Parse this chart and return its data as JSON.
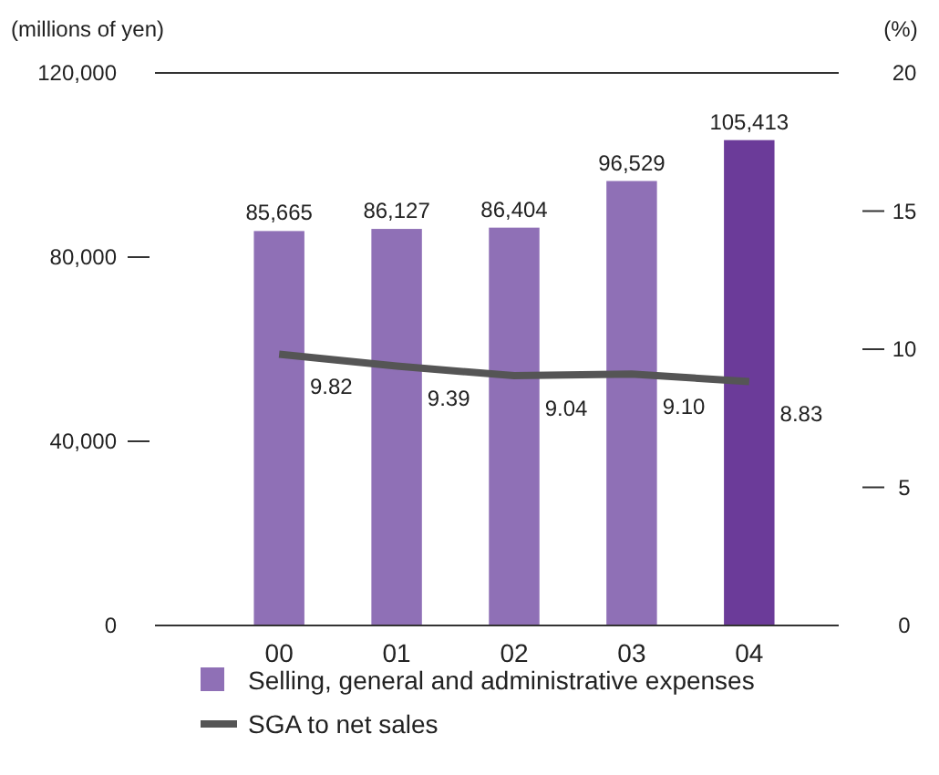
{
  "chart_data": {
    "type": "bar",
    "ylabel": "(millions of yen)",
    "y2label": "(%)",
    "categories": [
      "00",
      "01",
      "02",
      "03",
      "04"
    ],
    "series": [
      {
        "name": "Selling, general and administrative expenses",
        "colors": [
          "#8f70b6",
          "#8f70b6",
          "#8f70b6",
          "#8f70b6",
          "#6b3b99"
        ],
        "color": "#8f70b6",
        "values": [
          85665,
          86127,
          86404,
          96529,
          105413
        ],
        "value_labels": [
          "85,665",
          "86,127",
          "86,404",
          "96,529",
          "105,413"
        ]
      },
      {
        "name": "SGA to net sales",
        "type": "line",
        "axis": "y2",
        "color": "#555555",
        "values": [
          9.82,
          9.39,
          9.04,
          9.1,
          8.83
        ],
        "value_labels": [
          "9.82",
          "9.39",
          "9.04",
          "9.10",
          "8.83"
        ]
      }
    ],
    "ylim": [
      0,
      120000
    ],
    "yticks": [
      {
        "value": 0,
        "label": "0"
      },
      {
        "value": 40000,
        "label": "40,000"
      },
      {
        "value": 80000,
        "label": "80,000"
      },
      {
        "value": 120000,
        "label": "120,000"
      }
    ],
    "y2lim": [
      0,
      20
    ],
    "y2ticks": [
      0,
      5,
      10,
      15,
      20
    ],
    "legend": "bottom",
    "marker": "none",
    "line_style": "solid"
  }
}
